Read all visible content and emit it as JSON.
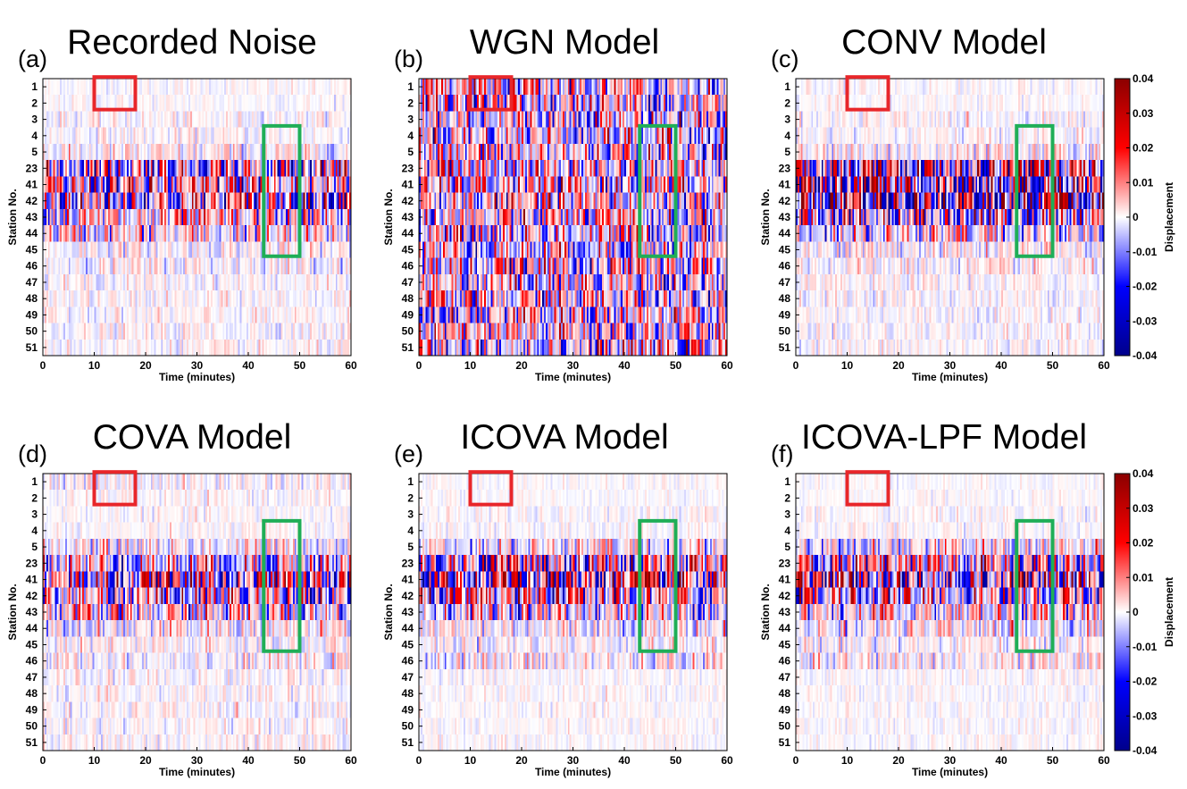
{
  "chart_data": {
    "type": "heatmap",
    "shared": {
      "xlabel": "Time (minutes)",
      "ylabel": "Station No.",
      "x_ticks": [
        0,
        10,
        20,
        30,
        40,
        50,
        60
      ],
      "xlim": [
        0,
        60
      ],
      "stations": [
        "1",
        "2",
        "3",
        "4",
        "5",
        "23",
        "41",
        "42",
        "43",
        "44",
        "45",
        "46",
        "47",
        "48",
        "49",
        "50",
        "51"
      ],
      "colorbar": {
        "label": "Displacement",
        "ticks": [
          "0.04",
          "0.03",
          "0.02",
          "0.01",
          "0",
          "-0.01",
          "-0.02",
          "-0.03",
          "-0.04"
        ],
        "range": [
          -0.04,
          0.04
        ],
        "colors": [
          "#00008b",
          "#0000ff",
          "#ffffff",
          "#ff0000",
          "#8b0000"
        ]
      },
      "highlight_boxes": [
        {
          "color": "#e8262a",
          "time_range": [
            10,
            18
          ],
          "stations": [
            "1",
            "2"
          ]
        },
        {
          "color": "#1fae57",
          "time_range": [
            43,
            50
          ],
          "stations": [
            "4",
            "45"
          ]
        }
      ]
    },
    "panels": [
      {
        "id": "a",
        "letter": "(a)",
        "title": "Recorded Noise",
        "amplitude_by_station": [
          0.05,
          0.05,
          0.08,
          0.08,
          0.15,
          0.55,
          0.6,
          0.65,
          0.4,
          0.3,
          0.12,
          0.12,
          0.08,
          0.08,
          0.08,
          0.08,
          0.08
        ],
        "colorbar": false
      },
      {
        "id": "b",
        "letter": "(b)",
        "title": "WGN Model",
        "amplitude_by_station": [
          0.45,
          0.45,
          0.45,
          0.45,
          0.45,
          0.45,
          0.45,
          0.45,
          0.45,
          0.45,
          0.45,
          0.45,
          0.45,
          0.45,
          0.45,
          0.45,
          0.45
        ],
        "colorbar": false
      },
      {
        "id": "c",
        "letter": "(c)",
        "title": "CONV Model",
        "amplitude_by_station": [
          0.05,
          0.05,
          0.08,
          0.08,
          0.15,
          0.75,
          0.85,
          0.95,
          0.6,
          0.35,
          0.15,
          0.12,
          0.08,
          0.08,
          0.08,
          0.08,
          0.08
        ],
        "colorbar": true
      },
      {
        "id": "d",
        "letter": "(d)",
        "title": "COVA Model",
        "amplitude_by_station": [
          0.1,
          0.06,
          0.06,
          0.06,
          0.2,
          0.45,
          0.65,
          0.55,
          0.4,
          0.18,
          0.12,
          0.12,
          0.08,
          0.08,
          0.08,
          0.08,
          0.08
        ],
        "colorbar": false
      },
      {
        "id": "e",
        "letter": "(e)",
        "title": "ICOVA Model",
        "amplitude_by_station": [
          0.04,
          0.04,
          0.06,
          0.06,
          0.25,
          0.6,
          0.85,
          0.55,
          0.35,
          0.2,
          0.12,
          0.18,
          0.05,
          0.05,
          0.05,
          0.05,
          0.05
        ],
        "colorbar": false
      },
      {
        "id": "f",
        "letter": "(f)",
        "title": "ICOVA-LPF Model",
        "amplitude_by_station": [
          0.04,
          0.04,
          0.06,
          0.06,
          0.25,
          0.6,
          0.8,
          0.5,
          0.35,
          0.2,
          0.12,
          0.15,
          0.05,
          0.05,
          0.05,
          0.05,
          0.05
        ],
        "colorbar": true
      }
    ]
  }
}
